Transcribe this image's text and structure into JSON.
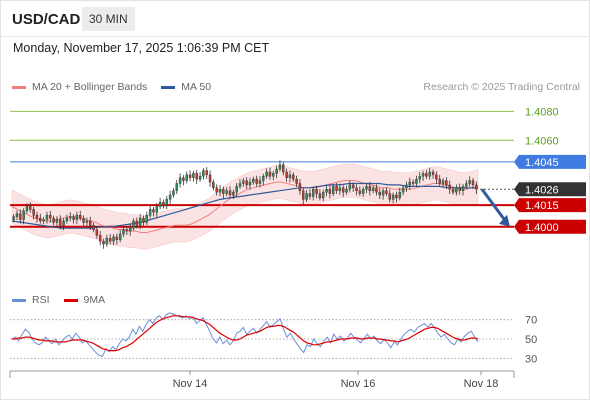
{
  "header": {
    "symbol": "USD/CAD",
    "interval": "30 MIN",
    "timestamp": "Monday, November 17, 2025 1:06:39 PM CET",
    "credit": "Research © 2025 Trading Central"
  },
  "colors": {
    "bollinger_fill": "#fbdada",
    "ma20": "#f08080",
    "ma50": "#2f5a9c",
    "candle_up": "#2e8b57",
    "candle_down": "#c0392b",
    "target_line": "#8bc34a",
    "pivot_line": "#3f7be0",
    "support_line": "#cc0000",
    "current_price_tag": "#333333",
    "arrow": "#2f5a9c",
    "rsi": "#6a8fd6",
    "rsi_ma": "#dd0000"
  },
  "chart_data": [
    {
      "type": "candlestick",
      "legend": [
        {
          "name": "MA 20 + Bollinger Bands",
          "color": "#f08080"
        },
        {
          "name": "MA 50",
          "color": "#2f5a9c"
        }
      ],
      "ylim": [
        1.397,
        1.409
      ],
      "x_ticks": [
        "Nov 14",
        "Nov 16",
        "Nov 18"
      ],
      "close_values": [
        1.4007,
        1.4009,
        1.4005,
        1.4011,
        1.4014,
        1.4012,
        1.4008,
        1.4006,
        1.4004,
        1.4005,
        1.4008,
        1.4006,
        1.4003,
        1.4005,
        1.4001,
        1.4004,
        1.4006,
        1.4007,
        1.4005,
        1.4008,
        1.4006,
        1.4003,
        1.4004,
        1.4001,
        1.3998,
        1.3994,
        1.399,
        1.3988,
        1.3992,
        1.399,
        1.3993,
        1.3991,
        1.3995,
        1.3998,
        1.3997,
        1.3999,
        1.4004,
        1.4001,
        1.4006,
        1.4003,
        1.4008,
        1.4012,
        1.401,
        1.4014,
        1.4017,
        1.4015,
        1.4019,
        1.4022,
        1.4025,
        1.403,
        1.4034,
        1.4032,
        1.4036,
        1.4034,
        1.4037,
        1.4033,
        1.4035,
        1.4039,
        1.4036,
        1.4031,
        1.4027,
        1.4024,
        1.4026,
        1.4023,
        1.4025,
        1.4022,
        1.4024,
        1.4028,
        1.403,
        1.4032,
        1.4029,
        1.4031,
        1.4033,
        1.403,
        1.4032,
        1.4035,
        1.4038,
        1.4035,
        1.4037,
        1.404,
        1.4043,
        1.4038,
        1.4034,
        1.4036,
        1.4033,
        1.403,
        1.4025,
        1.4019,
        1.4023,
        1.4021,
        1.4026,
        1.4023,
        1.402,
        1.4024,
        1.4026,
        1.4023,
        1.4028,
        1.4025,
        1.4027,
        1.4024,
        1.4026,
        1.4029,
        1.4027,
        1.4025,
        1.4023,
        1.4026,
        1.4028,
        1.4025,
        1.4027,
        1.4024,
        1.4022,
        1.4025,
        1.4023,
        1.4019,
        1.4022,
        1.402,
        1.4024,
        1.4027,
        1.4029,
        1.4031,
        1.403,
        1.4033,
        1.4035,
        1.4037,
        1.4035,
        1.4038,
        1.4036,
        1.4033,
        1.403,
        1.4032,
        1.4029,
        1.4026,
        1.4024,
        1.4027,
        1.4025,
        1.4028,
        1.403,
        1.4032,
        1.4029,
        1.4026
      ],
      "ma20_values": [
        1.4014,
        1.4012,
        1.401,
        1.4008,
        1.4006,
        1.4005,
        1.4004,
        1.4004,
        1.4005,
        1.4006,
        1.4007,
        1.4007,
        1.4006,
        1.4005,
        1.4004,
        1.4003,
        1.4001,
        1.4,
        1.3999,
        1.3998,
        1.3998,
        1.3997,
        1.3997,
        1.3996,
        1.3996,
        1.3997,
        1.3998,
        1.3999,
        1.4,
        1.4001,
        1.4001,
        1.4001,
        1.4002,
        1.4004,
        1.4006,
        1.4008,
        1.4011,
        1.4014,
        1.4017,
        1.402,
        1.4022,
        1.4024,
        1.4026,
        1.4027,
        1.4028,
        1.4029,
        1.403,
        1.4031,
        1.4031,
        1.403,
        1.4029,
        1.4028,
        1.4027,
        1.4027,
        1.4027,
        1.4028,
        1.4029,
        1.403,
        1.4031,
        1.4032,
        1.4032,
        1.4032,
        1.4031,
        1.403,
        1.4029,
        1.4028,
        1.4027,
        1.4027,
        1.4026,
        1.4026,
        1.4026,
        1.4026,
        1.4027,
        1.4028,
        1.4029,
        1.403,
        1.403,
        1.4029,
        1.4028,
        1.4027,
        1.4026,
        1.4026,
        1.4027,
        1.4028
      ],
      "ma50_values": [
        1.4004,
        1.4003,
        1.4002,
        1.4001,
        1.4,
        1.3999,
        1.3999,
        1.3999,
        1.3999,
        1.4,
        1.4,
        1.4001,
        1.4002,
        1.4003,
        1.4005,
        1.4007,
        1.4009,
        1.4011,
        1.4013,
        1.4015,
        1.4017,
        1.4019,
        1.402,
        1.4021,
        1.4022,
        1.4023,
        1.4024,
        1.4025,
        1.4026,
        1.4027,
        1.4027,
        1.4028,
        1.4029,
        1.4029,
        1.403,
        1.403,
        1.403,
        1.403,
        1.4029,
        1.4029,
        1.4028,
        1.4028,
        1.4028,
        1.4028,
        1.4027,
        1.4027,
        1.4027,
        1.4027
      ],
      "levels": [
        {
          "label": "1.4080",
          "value": 1.408,
          "kind": "target"
        },
        {
          "label": "1.4060",
          "value": 1.406,
          "kind": "target"
        },
        {
          "label": "1.4045",
          "value": 1.4045,
          "kind": "pivot"
        },
        {
          "label": "1.4026",
          "value": 1.4026,
          "kind": "current"
        },
        {
          "label": "1.4015",
          "value": 1.4015,
          "kind": "support"
        },
        {
          "label": "1.4000",
          "value": 1.4,
          "kind": "support"
        }
      ],
      "forecast_arrow": {
        "from": 1.4026,
        "to": 1.4,
        "direction": "down"
      }
    },
    {
      "type": "line",
      "legend": [
        {
          "name": "RSI",
          "color": "#6a8fd6"
        },
        {
          "name": "9MA",
          "color": "#dd0000"
        }
      ],
      "ylim": [
        20,
        80
      ],
      "y_ticks": [
        "70",
        "50",
        "30"
      ],
      "rsi_values": [
        50,
        52,
        48,
        55,
        60,
        57,
        50,
        46,
        44,
        46,
        52,
        48,
        45,
        50,
        44,
        48,
        52,
        54,
        50,
        56,
        52,
        46,
        48,
        44,
        40,
        36,
        33,
        32,
        40,
        37,
        42,
        39,
        45,
        50,
        48,
        52,
        60,
        55,
        63,
        58,
        65,
        70,
        66,
        72,
        74,
        70,
        75,
        77,
        76,
        74,
        73,
        72,
        74,
        71,
        73,
        66,
        69,
        72,
        65,
        58,
        50,
        46,
        52,
        45,
        49,
        44,
        48,
        56,
        58,
        62,
        55,
        58,
        61,
        56,
        60,
        64,
        68,
        62,
        65,
        68,
        71,
        60,
        52,
        56,
        50,
        45,
        40,
        36,
        44,
        42,
        50,
        45,
        42,
        48,
        52,
        46,
        55,
        50,
        53,
        48,
        51,
        56,
        52,
        49,
        46,
        51,
        55,
        50,
        53,
        48,
        45,
        50,
        46,
        41,
        47,
        44,
        50,
        55,
        58,
        60,
        57,
        62,
        64,
        66,
        62,
        66,
        62,
        56,
        52,
        55,
        50,
        46,
        44,
        50,
        47,
        53,
        56,
        58,
        52,
        47
      ],
      "rsi_ma_values": [
        50,
        50,
        51,
        51,
        52,
        52,
        51,
        50,
        49,
        49,
        48,
        48,
        48,
        47,
        47,
        47,
        47,
        48,
        49,
        49,
        49,
        49,
        48,
        47,
        46,
        44,
        42,
        40,
        39,
        38,
        38,
        38,
        39,
        41,
        42,
        44,
        46,
        49,
        52,
        55,
        58,
        61,
        64,
        67,
        69,
        71,
        72,
        73,
        74,
        74,
        74,
        73,
        73,
        73,
        72,
        71,
        70,
        69,
        67,
        65,
        62,
        59,
        56,
        54,
        52,
        50,
        49,
        49,
        50,
        52,
        54,
        55,
        56,
        57,
        58,
        60,
        62,
        63,
        63,
        64,
        64,
        63,
        61,
        59,
        57,
        54,
        51,
        48,
        46,
        45,
        44,
        44,
        45,
        46,
        47,
        47,
        48,
        49,
        50,
        50,
        50,
        51,
        51,
        51,
        50,
        50,
        51,
        51,
        51,
        50,
        50,
        49,
        49,
        48,
        48,
        47,
        48,
        49,
        50,
        52,
        54,
        56,
        58,
        60,
        61,
        62,
        62,
        61,
        59,
        57,
        55,
        53,
        51,
        50,
        49,
        49,
        50,
        51,
        51,
        50
      ]
    }
  ]
}
